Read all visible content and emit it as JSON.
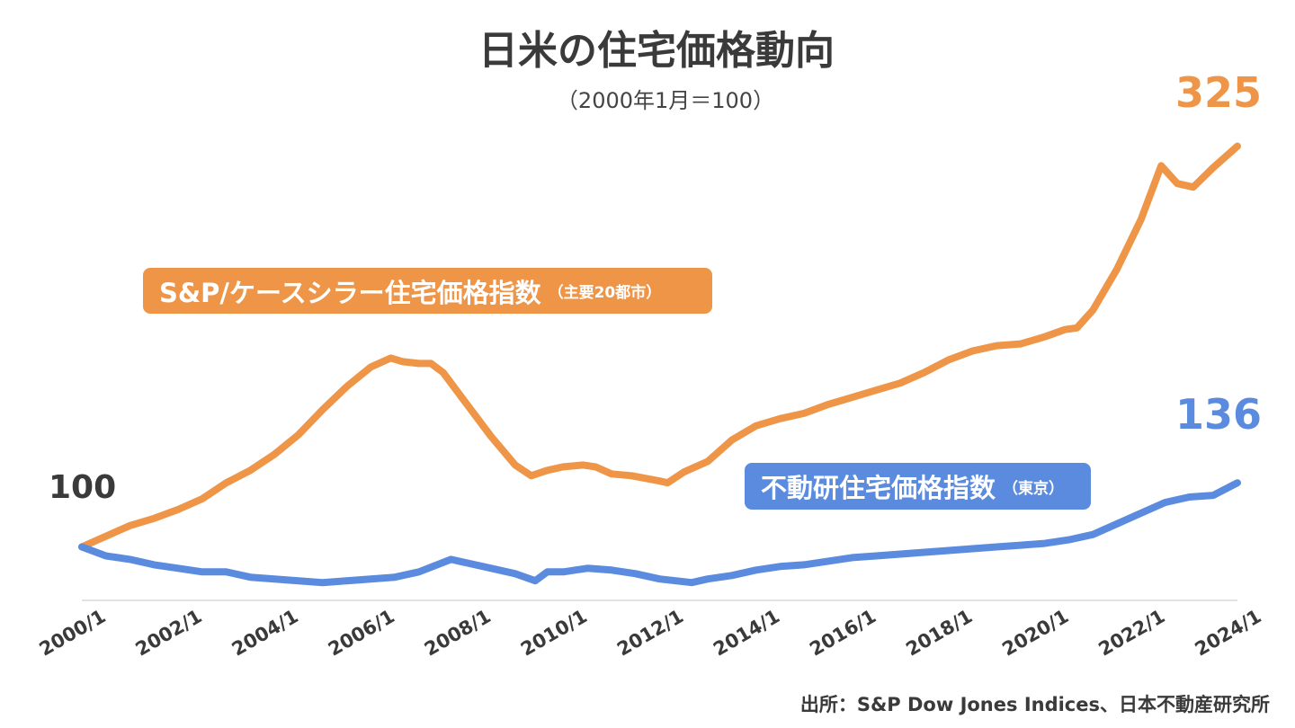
{
  "chart_data": {
    "type": "line",
    "title": "日米の住宅価格動向",
    "subtitle": "（2000年1月＝100）",
    "xlabel": "",
    "ylabel": "",
    "ylim": [
      70,
      330
    ],
    "grid": false,
    "x_ticks": [
      "2000/1",
      "2002/1",
      "2004/1",
      "2006/1",
      "2008/1",
      "2010/1",
      "2012/1",
      "2014/1",
      "2016/1",
      "2018/1",
      "2020/1",
      "2022/1",
      "2024/1"
    ],
    "series": [
      {
        "name": "S&P/ケースシラー住宅価格指数",
        "name_note": "（主要20都市）",
        "color": "#EE9548",
        "end_label": "325",
        "points": [
          [
            "2000/1",
            100
          ],
          [
            "2000/7",
            106
          ],
          [
            "2001/1",
            112
          ],
          [
            "2001/7",
            116
          ],
          [
            "2002/1",
            121
          ],
          [
            "2002/7",
            127
          ],
          [
            "2003/1",
            136
          ],
          [
            "2003/7",
            143
          ],
          [
            "2004/1",
            152
          ],
          [
            "2004/7",
            163
          ],
          [
            "2005/1",
            177
          ],
          [
            "2005/7",
            190
          ],
          [
            "2006/1",
            201
          ],
          [
            "2006/6",
            206
          ],
          [
            "2006/9",
            204
          ],
          [
            "2007/1",
            203
          ],
          [
            "2007/4",
            203
          ],
          [
            "2007/7",
            198
          ],
          [
            "2008/1",
            180
          ],
          [
            "2008/7",
            162
          ],
          [
            "2009/1",
            146
          ],
          [
            "2009/5",
            140
          ],
          [
            "2009/9",
            143
          ],
          [
            "2010/1",
            145
          ],
          [
            "2010/6",
            146
          ],
          [
            "2010/9",
            145
          ],
          [
            "2011/1",
            141
          ],
          [
            "2011/6",
            140
          ],
          [
            "2012/1",
            137
          ],
          [
            "2012/3",
            136
          ],
          [
            "2012/7",
            142
          ],
          [
            "2013/1",
            148
          ],
          [
            "2013/7",
            160
          ],
          [
            "2014/1",
            168
          ],
          [
            "2014/7",
            172
          ],
          [
            "2015/1",
            175
          ],
          [
            "2015/7",
            180
          ],
          [
            "2016/1",
            184
          ],
          [
            "2016/7",
            188
          ],
          [
            "2017/1",
            192
          ],
          [
            "2017/7",
            198
          ],
          [
            "2018/1",
            205
          ],
          [
            "2018/7",
            210
          ],
          [
            "2019/1",
            213
          ],
          [
            "2019/7",
            214
          ],
          [
            "2020/1",
            218
          ],
          [
            "2020/6",
            222
          ],
          [
            "2020/9",
            223
          ],
          [
            "2021/1",
            233
          ],
          [
            "2021/7",
            256
          ],
          [
            "2022/1",
            284
          ],
          [
            "2022/6",
            314
          ],
          [
            "2022/10",
            304
          ],
          [
            "2023/2",
            302
          ],
          [
            "2023/7",
            313
          ],
          [
            "2024/1",
            325
          ]
        ]
      },
      {
        "name": "不動研住宅価格指数",
        "name_note": "（東京）",
        "color": "#5B8BDF",
        "end_label": "136",
        "points": [
          [
            "2000/1",
            100
          ],
          [
            "2000/7",
            95
          ],
          [
            "2001/1",
            93
          ],
          [
            "2001/7",
            90
          ],
          [
            "2002/1",
            88
          ],
          [
            "2002/7",
            86
          ],
          [
            "2003/1",
            86
          ],
          [
            "2003/7",
            83
          ],
          [
            "2004/1",
            82
          ],
          [
            "2004/7",
            81
          ],
          [
            "2005/1",
            80
          ],
          [
            "2005/7",
            81
          ],
          [
            "2006/1",
            82
          ],
          [
            "2006/7",
            83
          ],
          [
            "2007/1",
            86
          ],
          [
            "2007/9",
            93
          ],
          [
            "2008/1",
            91
          ],
          [
            "2008/7",
            88
          ],
          [
            "2009/1",
            85
          ],
          [
            "2009/6",
            81
          ],
          [
            "2009/9",
            86
          ],
          [
            "2010/1",
            86
          ],
          [
            "2010/7",
            88
          ],
          [
            "2011/1",
            87
          ],
          [
            "2011/7",
            85
          ],
          [
            "2012/1",
            82
          ],
          [
            "2012/9",
            80
          ],
          [
            "2013/1",
            82
          ],
          [
            "2013/7",
            84
          ],
          [
            "2014/1",
            87
          ],
          [
            "2014/7",
            89
          ],
          [
            "2015/1",
            90
          ],
          [
            "2015/7",
            92
          ],
          [
            "2016/1",
            94
          ],
          [
            "2016/7",
            95
          ],
          [
            "2017/1",
            96
          ],
          [
            "2017/7",
            97
          ],
          [
            "2018/1",
            98
          ],
          [
            "2018/7",
            99
          ],
          [
            "2019/1",
            100
          ],
          [
            "2019/7",
            101
          ],
          [
            "2020/1",
            102
          ],
          [
            "2020/7",
            104
          ],
          [
            "2021/1",
            107
          ],
          [
            "2021/7",
            113
          ],
          [
            "2022/1",
            119
          ],
          [
            "2022/7",
            125
          ],
          [
            "2023/1",
            128
          ],
          [
            "2023/7",
            129
          ],
          [
            "2024/1",
            136
          ]
        ]
      }
    ],
    "start_label": "100",
    "source": "出所：S&P Dow Jones Indices、日本不動産研究所"
  }
}
